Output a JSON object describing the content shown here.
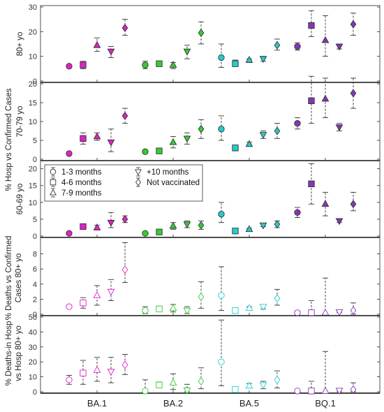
{
  "colors": {
    "BA.1": "#e020c8",
    "BA.2": "#33cc33",
    "BA.5": "#22cccc",
    "BQ.1": "#8833bb"
  },
  "chart_data": {
    "type": "scatter",
    "categories": [
      "BA.1",
      "BA.2",
      "BA.5",
      "BQ.1"
    ],
    "series_names": [
      "1-3 months",
      "4-6 months",
      "7-9 months",
      "+10 months",
      "Not vaccinated"
    ],
    "series_markers": [
      "circle",
      "square",
      "triangle-up",
      "triangle-down",
      "diamond"
    ],
    "outer_labels": [
      "% Hosp vs Confirmed Cases",
      "% Deaths vs Confirmed Cases 80+ yo",
      "% Deaths-in Hosp vs Hosp 80+ yo"
    ],
    "legend_position": "top-left of third panel",
    "panels": [
      {
        "id": "hosp-80",
        "ylabel": "80+ yo",
        "ylim": [
          0,
          30
        ],
        "yticks": [
          0,
          10,
          20,
          30
        ],
        "filled": true,
        "points": [
          [
            [
              6,
              5.5,
              6.5
            ],
            [
              6.5,
              5,
              8
            ],
            [
              14.5,
              12,
              17.5
            ],
            [
              12,
              9.5,
              14
            ],
            [
              21.5,
              18.5,
              25
            ]
          ],
          [
            [
              6.5,
              5,
              8
            ],
            [
              7,
              6.5,
              7.5
            ],
            [
              6.5,
              5,
              7.5
            ],
            [
              12,
              9,
              14.5
            ],
            [
              19.5,
              15,
              24
            ]
          ],
          [
            [
              9.5,
              5.5,
              15
            ],
            [
              7,
              6,
              8.5
            ],
            [
              8.5,
              7.5,
              9
            ],
            [
              9,
              8,
              10
            ],
            [
              14.5,
              12.5,
              17
            ]
          ],
          [
            [
              14,
              12.5,
              15.5
            ],
            [
              22.5,
              18,
              28.5
            ],
            [
              16.5,
              10,
              26.5
            ],
            [
              14,
              13,
              15
            ],
            [
              23,
              18.5,
              27.5
            ]
          ]
        ]
      },
      {
        "id": "hosp-70-79",
        "ylabel": "70-79 yo",
        "ylim": [
          0,
          20
        ],
        "yticks": [
          0,
          5,
          10,
          15,
          20
        ],
        "filled": true,
        "points": [
          [
            [
              1.5,
              1.2,
              1.8
            ],
            [
              5.5,
              4,
              7
            ],
            [
              6,
              5,
              7
            ],
            [
              4.5,
              2,
              8
            ],
            [
              11.5,
              9.5,
              13.5
            ]
          ],
          [
            [
              2,
              1.6,
              2.4
            ],
            [
              2.2,
              2,
              2.5
            ],
            [
              4.5,
              3,
              6
            ],
            [
              5.5,
              4,
              7
            ],
            [
              8,
              5.5,
              10.5
            ]
          ],
          [
            [
              8,
              5,
              11.5
            ],
            [
              3,
              2.6,
              3.4
            ],
            [
              4,
              3.5,
              4.5
            ],
            [
              6.5,
              5.5,
              7.5
            ],
            [
              7.5,
              5.5,
              9.5
            ]
          ],
          [
            [
              9.5,
              8,
              11
            ],
            [
              15.5,
              9.5,
              22
            ],
            [
              16,
              11,
              21.5
            ],
            [
              8.5,
              7.5,
              9.5
            ],
            [
              17.5,
              13.5,
              21.5
            ]
          ]
        ]
      },
      {
        "id": "hosp-60-69",
        "ylabel": "60-69 yo",
        "ylim": [
          0,
          22
        ],
        "yticks": [
          0,
          5,
          10,
          15,
          20
        ],
        "filled": true,
        "points": [
          [
            [
              0.8,
              0.6,
              1
            ],
            [
              2.8,
              2.5,
              3.1
            ],
            [
              2.5,
              1.8,
              3.2
            ],
            [
              4,
              2.5,
              7
            ],
            [
              5,
              4,
              6
            ]
          ],
          [
            [
              0.8,
              0.6,
              1
            ],
            [
              1.2,
              1,
              1.4
            ],
            [
              3,
              2,
              4
            ],
            [
              3.5,
              2.5,
              4.5
            ],
            [
              3.2,
              2,
              4.5
            ]
          ],
          [
            [
              6.5,
              4,
              10
            ],
            [
              1.5,
              1.3,
              1.7
            ],
            [
              2,
              1.8,
              2.3
            ],
            [
              3.2,
              2.8,
              3.6
            ],
            [
              3.5,
              2.5,
              4.5
            ]
          ],
          [
            [
              7,
              5.5,
              8.5
            ],
            [
              15.5,
              9.5,
              21.5
            ],
            [
              9.5,
              6,
              13
            ],
            [
              4.5,
              4,
              5
            ],
            [
              9.5,
              7.5,
              13
            ]
          ]
        ]
      },
      {
        "id": "deaths-80",
        "ylabel": "",
        "ylim": [
          0,
          10
        ],
        "yticks": [
          0,
          2,
          4,
          6,
          8
        ],
        "filled": false,
        "points": [
          [
            [
              1,
              0.8,
              1.2
            ],
            [
              1.5,
              0.8,
              2.2
            ],
            [
              2.5,
              1.2,
              3.8
            ],
            [
              3,
              1.8,
              4.6
            ],
            [
              5.9,
              4.2,
              9.5
            ]
          ],
          [
            [
              0.5,
              0.1,
              1
            ],
            [
              0.7,
              0.4,
              1
            ],
            [
              0.8,
              0.3,
              1.3
            ],
            [
              0.5,
              0.1,
              1
            ],
            [
              2.3,
              0.8,
              4.3
            ]
          ],
          [
            [
              2.5,
              0.5,
              6.3
            ],
            [
              0.5,
              0.2,
              0.8
            ],
            [
              0.8,
              0.6,
              1
            ],
            [
              1,
              0.7,
              1.2
            ],
            [
              2.1,
              1.2,
              3.3
            ]
          ],
          [
            [
              0.2,
              0,
              0.4
            ],
            [
              0.2,
              0,
              1.8
            ],
            [
              0.2,
              0,
              4.8
            ],
            [
              0.3,
              0.2,
              0.4
            ],
            [
              0.5,
              0,
              1.5
            ]
          ]
        ]
      },
      {
        "id": "deaths-in-hosp-80",
        "ylabel": "",
        "ylim": [
          0,
          50
        ],
        "yticks": [
          0,
          10,
          20,
          30,
          40,
          50
        ],
        "filled": false,
        "points": [
          [
            [
              8,
              5,
              11
            ],
            [
              12.5,
              5,
              21
            ],
            [
              14.5,
              7,
              23
            ],
            [
              13.5,
              6,
              23
            ],
            [
              18,
              11.5,
              25
            ]
          ],
          [
            [
              0.5,
              0,
              8
            ],
            [
              4.5,
              3,
              6.5
            ],
            [
              6,
              1.5,
              12
            ],
            [
              1,
              0,
              5
            ],
            [
              7,
              2,
              16
            ]
          ],
          [
            [
              20,
              4,
              48
            ],
            [
              1.5,
              0,
              3
            ],
            [
              4,
              2.5,
              5.5
            ],
            [
              4.5,
              2,
              7
            ],
            [
              8,
              2.5,
              14
            ]
          ],
          [
            [
              0.5,
              0,
              1
            ],
            [
              0.5,
              0,
              7
            ],
            [
              0.5,
              0,
              27
            ],
            [
              0.8,
              0,
              1.5
            ],
            [
              1.5,
              0,
              6
            ]
          ]
        ]
      }
    ]
  }
}
